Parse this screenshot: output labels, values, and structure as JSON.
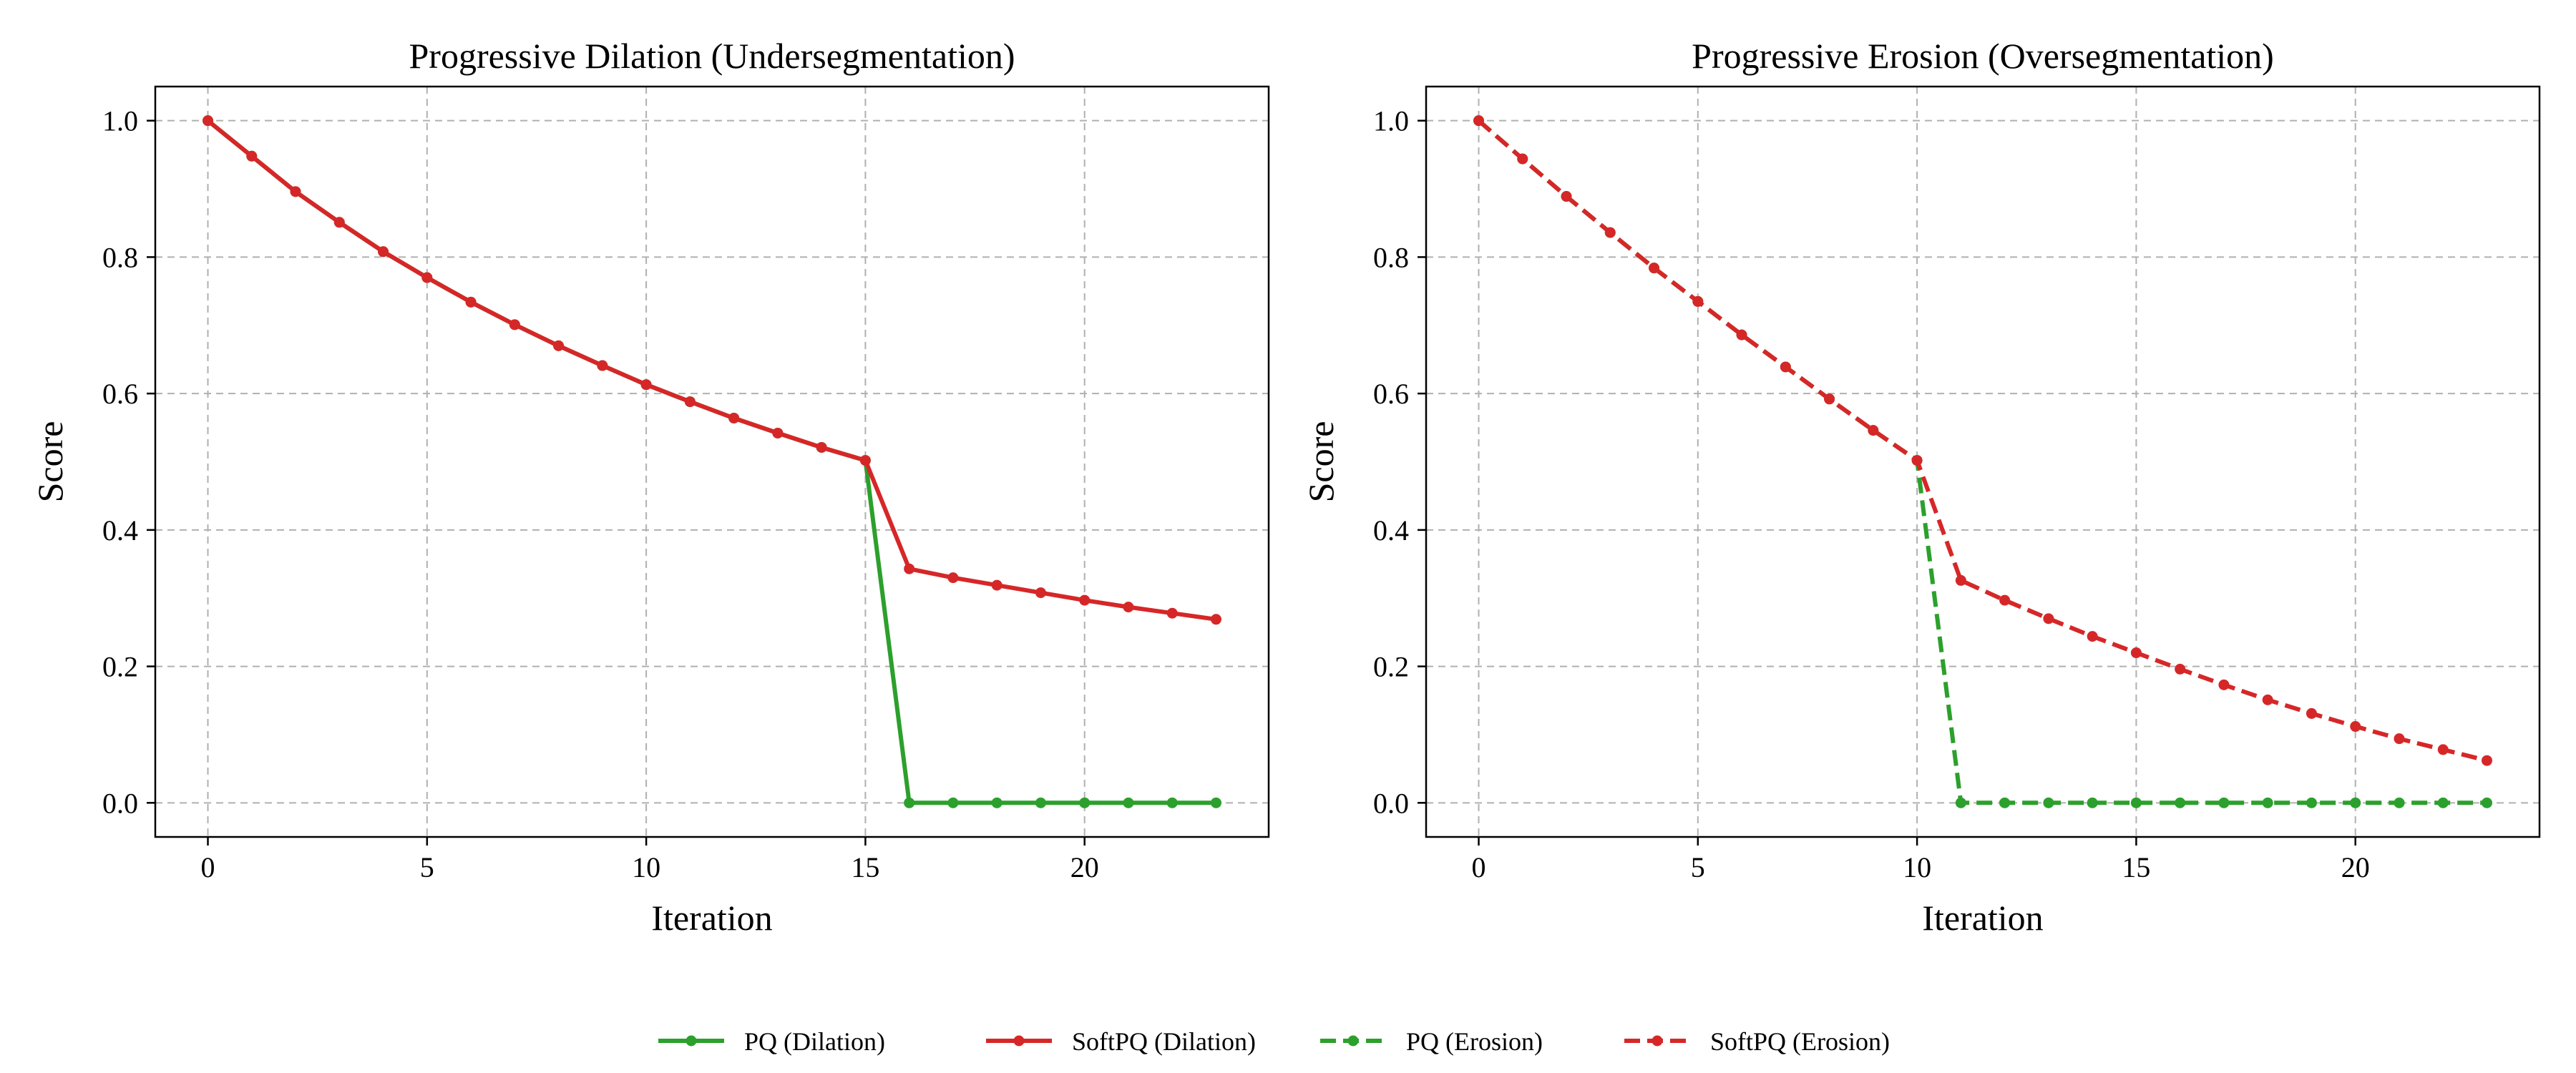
{
  "chart_data": [
    {
      "type": "line",
      "title": "Progressive Dilation (Undersegmentation)",
      "xlabel": "Iteration",
      "ylabel": "Score",
      "xlim": [
        -1.2,
        24.2
      ],
      "ylim": [
        -0.05,
        1.05
      ],
      "xticks": [
        0,
        5,
        10,
        15,
        20
      ],
      "yticks": [
        0.0,
        0.2,
        0.4,
        0.6,
        0.8,
        1.0
      ],
      "grid": true,
      "series": [
        {
          "name": "PQ (Dilation)",
          "color": "#2ca02c",
          "linestyle": "solid",
          "x": [
            0,
            1,
            2,
            3,
            4,
            5,
            6,
            7,
            8,
            9,
            10,
            11,
            12,
            13,
            14,
            15,
            16,
            17,
            18,
            19,
            20,
            21,
            22,
            23
          ],
          "y": [
            1.0,
            0.948,
            0.896,
            0.851,
            0.808,
            0.77,
            0.734,
            0.701,
            0.67,
            0.641,
            0.613,
            0.588,
            0.564,
            0.542,
            0.521,
            0.502,
            0.0,
            0.0,
            0.0,
            0.0,
            0.0,
            0.0,
            0.0,
            0.0
          ]
        },
        {
          "name": "SoftPQ (Dilation)",
          "color": "#d62728",
          "linestyle": "solid",
          "x": [
            0,
            1,
            2,
            3,
            4,
            5,
            6,
            7,
            8,
            9,
            10,
            11,
            12,
            13,
            14,
            15,
            16,
            17,
            18,
            19,
            20,
            21,
            22,
            23
          ],
          "y": [
            1.0,
            0.948,
            0.896,
            0.851,
            0.808,
            0.77,
            0.734,
            0.701,
            0.67,
            0.641,
            0.613,
            0.588,
            0.564,
            0.542,
            0.521,
            0.502,
            0.343,
            0.33,
            0.319,
            0.308,
            0.297,
            0.287,
            0.278,
            0.269
          ]
        }
      ]
    },
    {
      "type": "line",
      "title": "Progressive Erosion (Oversegmentation)",
      "xlabel": "Iteration",
      "ylabel": "Score",
      "xlim": [
        -1.2,
        24.2
      ],
      "ylim": [
        -0.05,
        1.05
      ],
      "xticks": [
        0,
        5,
        10,
        15,
        20
      ],
      "yticks": [
        0.0,
        0.2,
        0.4,
        0.6,
        0.8,
        1.0
      ],
      "grid": true,
      "series": [
        {
          "name": "PQ (Erosion)",
          "color": "#2ca02c",
          "linestyle": "dashed",
          "x": [
            0,
            1,
            2,
            3,
            4,
            5,
            6,
            7,
            8,
            9,
            10,
            11,
            12,
            13,
            14,
            15,
            16,
            17,
            18,
            19,
            20,
            21,
            22,
            23
          ],
          "y": [
            1.0,
            0.944,
            0.889,
            0.836,
            0.784,
            0.735,
            0.686,
            0.639,
            0.592,
            0.546,
            0.502,
            0.0,
            0.0,
            0.0,
            0.0,
            0.0,
            0.0,
            0.0,
            0.0,
            0.0,
            0.0,
            0.0,
            0.0,
            0.0
          ]
        },
        {
          "name": "SoftPQ (Erosion)",
          "color": "#d62728",
          "linestyle": "dashed",
          "x": [
            0,
            1,
            2,
            3,
            4,
            5,
            6,
            7,
            8,
            9,
            10,
            11,
            12,
            13,
            14,
            15,
            16,
            17,
            18,
            19,
            20,
            21,
            22,
            23
          ],
          "y": [
            1.0,
            0.944,
            0.889,
            0.836,
            0.784,
            0.735,
            0.686,
            0.639,
            0.592,
            0.546,
            0.502,
            0.326,
            0.297,
            0.27,
            0.244,
            0.22,
            0.196,
            0.173,
            0.151,
            0.131,
            0.112,
            0.094,
            0.078,
            0.062
          ]
        }
      ]
    }
  ],
  "legend": {
    "placement": "bottom-center",
    "entries": [
      "PQ (Dilation)",
      "SoftPQ (Dilation)",
      "PQ (Erosion)",
      "SoftPQ (Erosion)"
    ]
  }
}
